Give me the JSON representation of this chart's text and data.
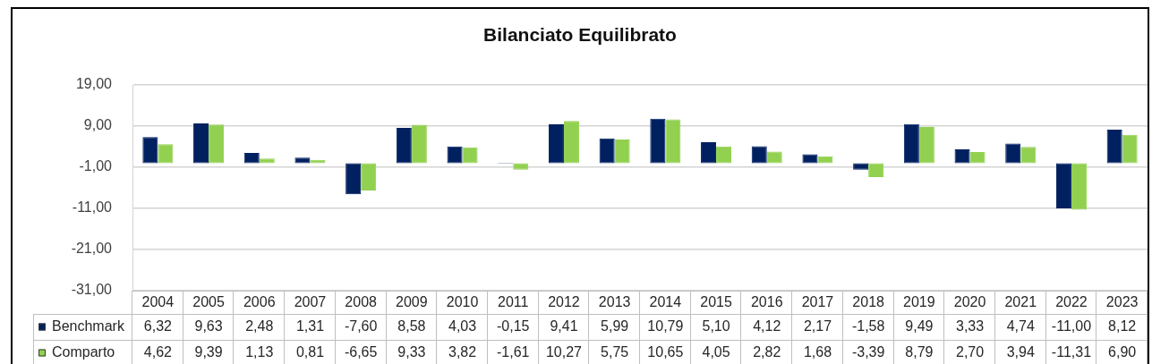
{
  "chart_data": {
    "type": "bar",
    "title": "Bilanciato Equilibrato",
    "categories": [
      "2004",
      "2005",
      "2006",
      "2007",
      "2008",
      "2009",
      "2010",
      "2011",
      "2012",
      "2013",
      "2014",
      "2015",
      "2016",
      "2017",
      "2018",
      "2019",
      "2020",
      "2021",
      "2022",
      "2023"
    ],
    "series": [
      {
        "name": "Benchmark",
        "color": "#002060",
        "values": [
          6.32,
          9.63,
          2.48,
          1.31,
          -7.6,
          8.58,
          4.03,
          -0.15,
          9.41,
          5.99,
          10.79,
          5.1,
          4.12,
          2.17,
          -1.58,
          9.49,
          3.33,
          4.74,
          -11.0,
          8.12
        ],
        "value_labels": [
          "6,32",
          "9,63",
          "2,48",
          "1,31",
          "-7,60",
          "8,58",
          "4,03",
          "-0,15",
          "9,41",
          "5,99",
          "10,79",
          "5,10",
          "4,12",
          "2,17",
          "-1,58",
          "9,49",
          "3,33",
          "4,74",
          "-11,00",
          "8,12"
        ]
      },
      {
        "name": "Comparto",
        "color": "#92d050",
        "values": [
          4.62,
          9.39,
          1.13,
          0.81,
          -6.65,
          9.33,
          3.82,
          -1.61,
          10.27,
          5.75,
          10.65,
          4.05,
          2.82,
          1.68,
          -3.39,
          8.79,
          2.7,
          3.94,
          -11.31,
          6.9
        ],
        "value_labels": [
          "4,62",
          "9,39",
          "1,13",
          "0,81",
          "-6,65",
          "9,33",
          "3,82",
          "-1,61",
          "10,27",
          "5,75",
          "10,65",
          "4,05",
          "2,82",
          "1,68",
          "-3,39",
          "8,79",
          "2,70",
          "3,94",
          "-11,31",
          "6,90"
        ]
      }
    ],
    "ylim": [
      -31,
      19
    ],
    "yticks": [
      {
        "value": -31,
        "label": "-31,00"
      },
      {
        "value": -21,
        "label": "-21,00"
      },
      {
        "value": -11,
        "label": "-11,00"
      },
      {
        "value": -1,
        "label": "-1,00"
      },
      {
        "value": 9,
        "label": "9,00"
      },
      {
        "value": 19,
        "label": "19,00"
      }
    ],
    "grid": "y",
    "legend": "bottom"
  }
}
